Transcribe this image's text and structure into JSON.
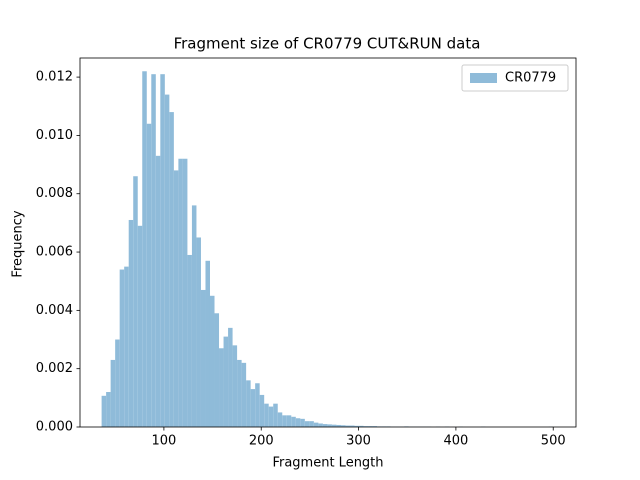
{
  "chart_data": {
    "type": "histogram",
    "title": "Fragment size of CR0779 CUT&RUN data",
    "x_label": "Fragment Length",
    "y_label": "Frequency",
    "bins": [
      36,
      40.64,
      45.28,
      49.92,
      54.56,
      59.2,
      63.84,
      68.48,
      73.12,
      77.76,
      82.4,
      87.04,
      91.68,
      96.32,
      100.96,
      105.6,
      110.24,
      114.88,
      119.52,
      124.16,
      128.8,
      133.44,
      138.08,
      142.72,
      147.36,
      152,
      156.64,
      161.28,
      165.92,
      170.56,
      175.2,
      179.84,
      184.48,
      189.12,
      193.76,
      198.4,
      203.04,
      207.68,
      212.32,
      216.96,
      221.6,
      226.24,
      230.88,
      235.52,
      240.16,
      244.8,
      249.44,
      254.08,
      258.72,
      263.36,
      268,
      272.64,
      277.28,
      281.92,
      286.56,
      291.2,
      295.84,
      300.48,
      305.12,
      309.76,
      314.4,
      319.04,
      323.68,
      328.32,
      332.96,
      337.6,
      342.24,
      346.88,
      351.52,
      356.16,
      360.8,
      365.44,
      370.08,
      374.72,
      379.36,
      384,
      388.64,
      393.28,
      397.92,
      402.56,
      407.2,
      411.84,
      416.48,
      421.12,
      425.76,
      430.4,
      435.04,
      439.68,
      444.32,
      448.96,
      453.6,
      458.24,
      462.88,
      467.52,
      472.16,
      476.8,
      481.44,
      486.08,
      490.72,
      495.36,
      500
    ],
    "series": [
      {
        "name": "CR0779",
        "color": "#8fbbd9",
        "values": [
          0.00107,
          0.0012,
          0.0023,
          0.003,
          0.0054,
          0.0055,
          0.0071,
          0.0086,
          0.0069,
          0.0122,
          0.0104,
          0.0121,
          0.0093,
          0.0121,
          0.0114,
          0.0108,
          0.0088,
          0.0092,
          0.0092,
          0.0059,
          0.0076,
          0.0065,
          0.0047,
          0.0057,
          0.0045,
          0.0039,
          0.0027,
          0.0031,
          0.0034,
          0.0028,
          0.0023,
          0.0022,
          0.0016,
          0.0013,
          0.0015,
          0.0011,
          0.0008,
          0.0007,
          0.0008,
          0.0005,
          0.0004,
          0.0004,
          0.00035,
          0.0003,
          0.00028,
          0.0002,
          0.0002,
          0.00015,
          0.00012,
          0.0001,
          9e-05,
          8e-05,
          7e-05,
          6e-05,
          5e-05,
          5e-05,
          4e-05,
          4e-05,
          3e-05,
          3e-05,
          3e-05,
          2e-05,
          2e-05,
          2e-05,
          1e-05,
          1e-05,
          1e-05,
          2e-05,
          1e-05,
          1e-05,
          1e-05,
          1e-05,
          1e-05,
          0,
          1e-05,
          0,
          1e-05,
          0,
          0,
          1e-05,
          0,
          0,
          0,
          0,
          1e-05,
          0,
          0,
          0,
          0,
          0,
          0,
          0,
          0,
          0,
          0,
          0,
          0,
          0,
          0,
          1e-05
        ]
      }
    ],
    "xlim": [
      13.8,
      523.4
    ],
    "xticks": [
      100,
      200,
      300,
      400,
      500
    ],
    "ylim": [
      0,
      0.012655
    ],
    "yticks": [
      {
        "value": 0,
        "label": "0.000"
      },
      {
        "value": 0.002,
        "label": "0.002"
      },
      {
        "value": 0.004,
        "label": "0.004"
      },
      {
        "value": 0.006,
        "label": "0.006"
      },
      {
        "value": 0.008,
        "label": "0.008"
      },
      {
        "value": 0.01,
        "label": "0.010"
      },
      {
        "value": 0.012,
        "label": "0.012"
      }
    ],
    "legend": "upper right"
  }
}
